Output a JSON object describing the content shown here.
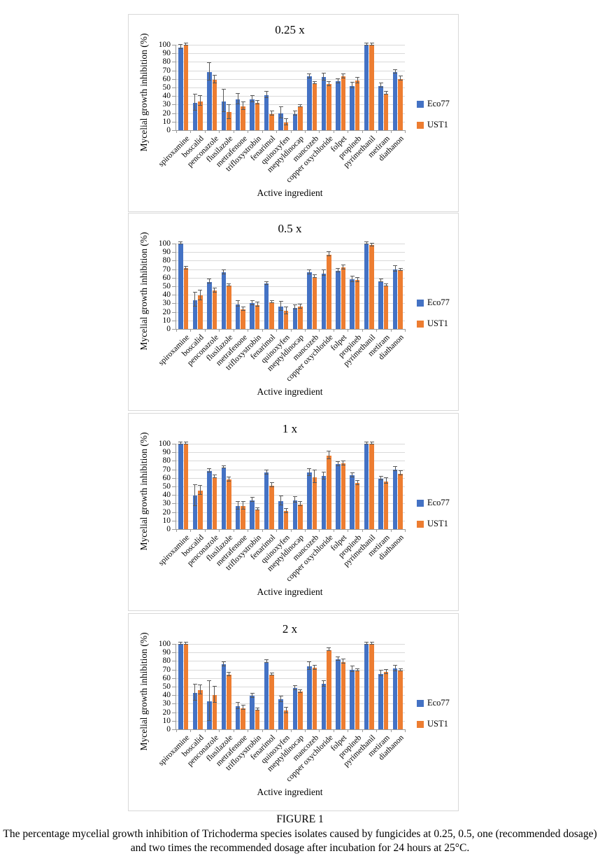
{
  "page": {
    "background": "#ffffff"
  },
  "colors": {
    "eco77": "#4472C4",
    "ust1": "#ED7D31",
    "error_bar": "#595959",
    "gridline": "#D9D9D9",
    "axis_line": "#9A9A9A",
    "panel_border": "#D8D8D8"
  },
  "figure_caption": {
    "label": "FIGURE 1",
    "text": "The percentage mycelial growth inhibition of Trichoderma species isolates caused by fungicides at 0.25, 0.5, one (recommended dosage) and two times the recommended dosage after incubation for 24 hours at 25°C."
  },
  "chart_data": [
    {
      "type": "bar",
      "title": "0.25 x",
      "xlabel": "Active ingredient",
      "ylabel": "Mycelial growth inhibition (%)",
      "ylim": [
        0,
        100
      ],
      "ytick_step": 10,
      "grid": true,
      "legend_position": "right",
      "categories": [
        "spiroxamine",
        "boscalid",
        "penconazole",
        "flusilazole",
        "metrafenone",
        "trifloxystrobin",
        "fenarimol",
        "quinoxyfen",
        "meptyldinocap",
        "mancozeb",
        "copper oxychloride",
        "folpet",
        "propineb",
        "pyrimethanil",
        "metiram",
        "diathanon"
      ],
      "series": [
        {
          "name": "Eco77",
          "color": "#4472C4",
          "values": [
            97,
            32,
            68,
            34,
            36,
            36,
            41,
            20,
            19,
            63,
            62,
            57,
            52,
            100,
            52,
            68
          ],
          "errors": [
            2,
            9,
            10,
            13,
            6,
            3,
            3,
            6,
            2,
            2,
            4,
            2,
            3,
            1,
            2,
            2
          ]
        },
        {
          "name": "UST1",
          "color": "#ED7D31",
          "values": [
            100,
            34,
            59,
            21,
            28,
            32,
            19,
            9,
            28,
            55,
            54,
            63,
            58,
            100,
            43,
            60
          ],
          "errors": [
            1,
            5,
            4,
            8,
            4,
            2,
            2,
            3,
            1,
            1,
            2,
            2,
            3,
            1,
            1,
            2
          ]
        }
      ]
    },
    {
      "type": "bar",
      "title": "0.5 x",
      "xlabel": "Active ingredient",
      "ylabel": "Mycelial growth inhibition (%)",
      "ylim": [
        0,
        100
      ],
      "ytick_step": 10,
      "grid": true,
      "legend_position": "right",
      "categories": [
        "spiroxamine",
        "boscalid",
        "penconazole",
        "flusilazole",
        "metrafenone",
        "trifloxystrobin",
        "fenarimol",
        "quinoxyfen",
        "meptyldinocap",
        "mancozeb",
        "copper oxychloride",
        "folpet",
        "propineb",
        "pyrimethanil",
        "metiram",
        "diathanon"
      ],
      "series": [
        {
          "name": "Eco77",
          "color": "#4472C4",
          "values": [
            100,
            34,
            55,
            66,
            29,
            30,
            53,
            26,
            25,
            66,
            65,
            68,
            58,
            100,
            56,
            70
          ],
          "errors": [
            1,
            8,
            2,
            2,
            3,
            2,
            1,
            5,
            2,
            2,
            3,
            2,
            3,
            1,
            1,
            3
          ]
        },
        {
          "name": "UST1",
          "color": "#ED7D31",
          "values": [
            71,
            39,
            45,
            51,
            23,
            28,
            31,
            21,
            26,
            61,
            87,
            72,
            57,
            98,
            51,
            69
          ],
          "errors": [
            1,
            5,
            2,
            1,
            2,
            2,
            1,
            4,
            2,
            1,
            2,
            2,
            2,
            1,
            1,
            1
          ]
        }
      ]
    },
    {
      "type": "bar",
      "title": "1 x",
      "xlabel": "Active ingredient",
      "ylabel": "Mycelial growth inhibition (%)",
      "ylim": [
        0,
        100
      ],
      "ytick_step": 10,
      "grid": true,
      "legend_position": "right",
      "categories": [
        "spiroxamine",
        "boscalid",
        "penconazole",
        "flusilazole",
        "metrafenone",
        "trifloxystrobin",
        "fenarimol",
        "quinoxyfen",
        "meptyldinocap",
        "mancozeb",
        "copper oxychloride",
        "folpet",
        "propineb",
        "pyrimethanil",
        "metiram",
        "diathanon"
      ],
      "series": [
        {
          "name": "Eco77",
          "color": "#4472C4",
          "values": [
            100,
            39,
            68,
            72,
            27,
            34,
            66,
            33,
            34,
            66,
            62,
            76,
            63,
            100,
            59,
            70
          ],
          "errors": [
            1,
            12,
            2,
            1,
            4,
            2,
            2,
            5,
            3,
            4,
            4,
            2,
            2,
            1,
            2,
            2
          ]
        },
        {
          "name": "UST1",
          "color": "#ED7D31",
          "values": [
            100,
            45,
            61,
            58,
            27,
            23,
            51,
            21,
            29,
            61,
            86,
            77,
            54,
            100,
            56,
            65
          ],
          "errors": [
            1,
            5,
            1,
            2,
            4,
            1,
            2,
            2,
            2,
            7,
            4,
            2,
            2,
            1,
            3,
            2
          ]
        }
      ]
    },
    {
      "type": "bar",
      "title": "2 x",
      "xlabel": "Active ingredient",
      "ylabel": "Mycelial growth inhibition (%)",
      "ylim": [
        0,
        100
      ],
      "ytick_step": 10,
      "grid": true,
      "legend_position": "right",
      "categories": [
        "spiroxamine",
        "boscalid",
        "penconazole",
        "flusilazole",
        "metrafenone",
        "trifloxystrobin",
        "fenarimol",
        "quinoxyfen",
        "meptyldinocap",
        "mancozeb",
        "copper oxychloride",
        "folpet",
        "propineb",
        "pyrimethanil",
        "metiram",
        "diathanon"
      ],
      "series": [
        {
          "name": "Eco77",
          "color": "#4472C4",
          "values": [
            100,
            43,
            33,
            76,
            27,
            39,
            79,
            35,
            48,
            74,
            53,
            82,
            70,
            100,
            65,
            71
          ],
          "errors": [
            1,
            9,
            23,
            2,
            3,
            2,
            1,
            3,
            2,
            4,
            3,
            2,
            3,
            1,
            3,
            3
          ]
        },
        {
          "name": "UST1",
          "color": "#ED7D31",
          "values": [
            100,
            46,
            40,
            64,
            25,
            23,
            64,
            22,
            44,
            72,
            93,
            79,
            69,
            100,
            67,
            69
          ],
          "errors": [
            1,
            5,
            9,
            2,
            2,
            1,
            1,
            3,
            1,
            2,
            1,
            2,
            1,
            1,
            2,
            1
          ]
        }
      ]
    }
  ]
}
